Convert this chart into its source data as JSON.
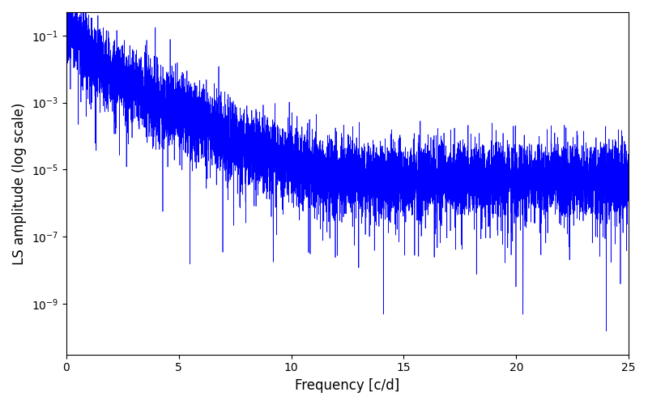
{
  "xlabel": "Frequency [c/d]",
  "ylabel": "LS amplitude (log scale)",
  "xlim": [
    0,
    25
  ],
  "ylim_low": 3e-11,
  "ylim_high": 0.5,
  "line_color": "blue",
  "line_width": 0.5,
  "freq_min": 0.0,
  "freq_max": 25.0,
  "n_points": 10000,
  "seed": 7,
  "background_color": "#ffffff",
  "figsize": [
    8.0,
    5.0
  ],
  "dpi": 100
}
